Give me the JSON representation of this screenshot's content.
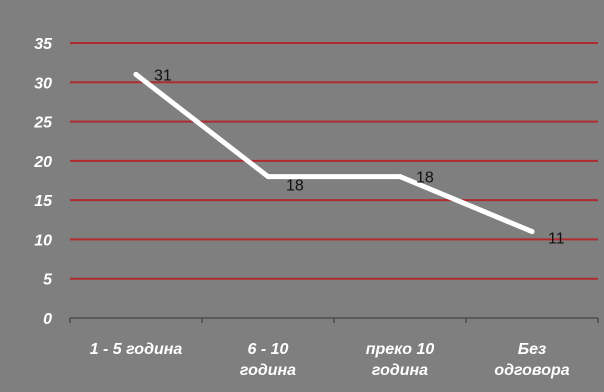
{
  "chart_data": {
    "type": "line",
    "categories": [
      "1 - 5 година",
      "6 - 10 година",
      "преко 10 година",
      "Без одговора"
    ],
    "category_lines": [
      [
        "1 - 5 година"
      ],
      [
        "6 - 10",
        "година"
      ],
      [
        "преко 10",
        "година"
      ],
      [
        "Без",
        "одговора"
      ]
    ],
    "values": [
      31,
      18,
      18,
      11
    ],
    "value_labels": [
      "31",
      "18",
      "18",
      "11"
    ],
    "y_ticks": [
      "0",
      "5",
      "10",
      "15",
      "20",
      "25",
      "30",
      "35"
    ],
    "ylim": [
      0,
      35
    ],
    "grid": true,
    "colors": {
      "background": "#7f7f7f",
      "plot_background": "#808080",
      "gridline": "#b02a2f",
      "line": "#ffffff",
      "tick_text": "#ffffff",
      "value_text": "#111111",
      "axis": "#4d4d4d"
    }
  }
}
